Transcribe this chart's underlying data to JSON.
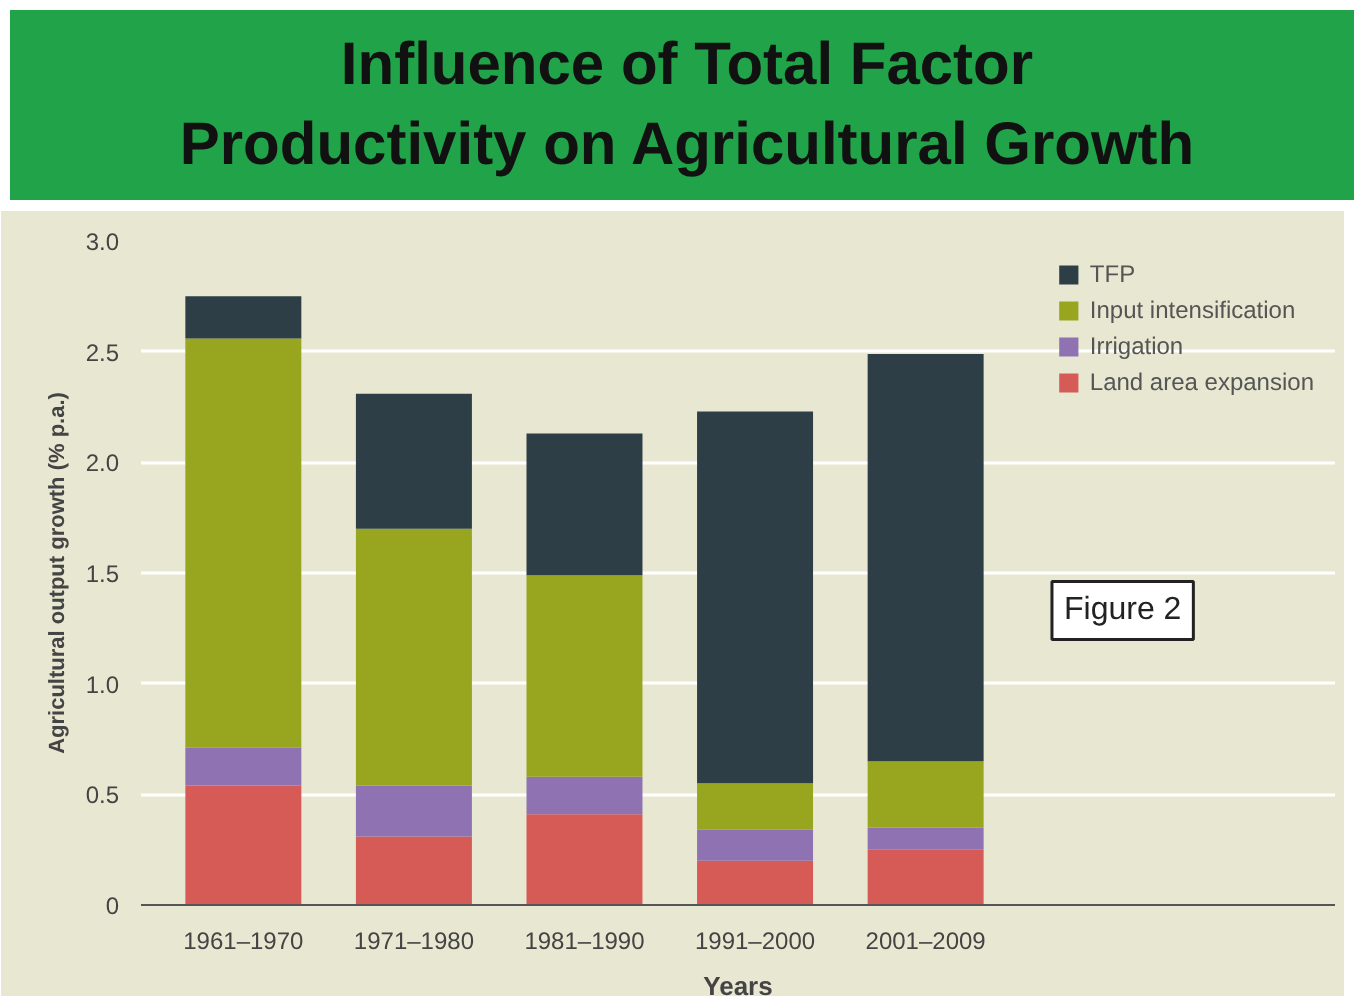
{
  "chart_data": {
    "type": "bar",
    "stacked": true,
    "title": "Influence of Total Factor Productivity on Agricultural Growth",
    "xlabel": "Years",
    "ylabel": "Agricultural output growth (% p.a.)",
    "categories": [
      "1961–1970",
      "1971–1980",
      "1981–1990",
      "1991–2000",
      "2001–2009"
    ],
    "series": [
      {
        "name": "Land area expansion",
        "color": "#d65b57",
        "values": [
          0.54,
          0.31,
          0.41,
          0.2,
          0.25
        ]
      },
      {
        "name": "Irrigation",
        "color": "#8e72b1",
        "values": [
          0.17,
          0.23,
          0.17,
          0.14,
          0.1
        ]
      },
      {
        "name": "Input intensification",
        "color": "#97a51f",
        "values": [
          1.85,
          1.16,
          0.91,
          0.21,
          0.3
        ]
      },
      {
        "name": "TFP",
        "color": "#2d3e47",
        "values": [
          0.19,
          0.61,
          0.64,
          1.68,
          1.84
        ]
      }
    ],
    "ylim": [
      0,
      3.0
    ],
    "yticks": [
      0,
      0.5,
      {
        "value": 1,
        "label": "1.0"
      },
      1.5,
      {
        "value": 2,
        "label": "2.0"
      },
      2.5,
      {
        "value": 3,
        "label": "3.0"
      }
    ],
    "grid": "y",
    "legend": "top right",
    "annotations": [
      "Figure 2"
    ]
  }
}
